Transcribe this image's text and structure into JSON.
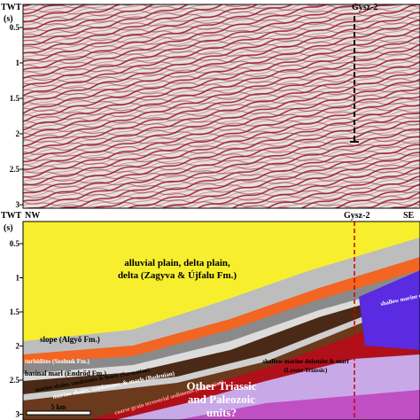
{
  "top_panel": {
    "axis_label": "TWT",
    "unit": "(s)",
    "ticks": [
      "0.5",
      "1",
      "1.5",
      "2",
      "2.5",
      "3"
    ],
    "well": "Gysz-2"
  },
  "bottom_panel": {
    "axis_label": "TWT",
    "unit": "(s)",
    "ticks": [
      "0.5",
      "1",
      "1.5",
      "2",
      "2.5",
      "3"
    ],
    "well": "Gysz-2",
    "left_direction": "NW",
    "right_direction": "SE",
    "units": [
      "alluvial plain, delta plain,",
      "delta (Zagyva & Újfalu Fm.)",
      "slope (Algyő Fm.)",
      "turbidites (Szolnok Fm.)",
      "basinal marl (Endrőd Fm.)",
      "marine shales, sandstones & marls (Sarmatian)",
      "marine shales, sandstones, & marls (Badenian)",
      "coarse grain terrestrial sediments (Karpatian)",
      "shallow marine dolomite (Upper Triassic)",
      "shallow marine dolomite & marl",
      "(Lower Triassic)",
      "Other Triassic",
      "and Paleozoic",
      "units?"
    ],
    "scale_bar": "5 km"
  }
}
